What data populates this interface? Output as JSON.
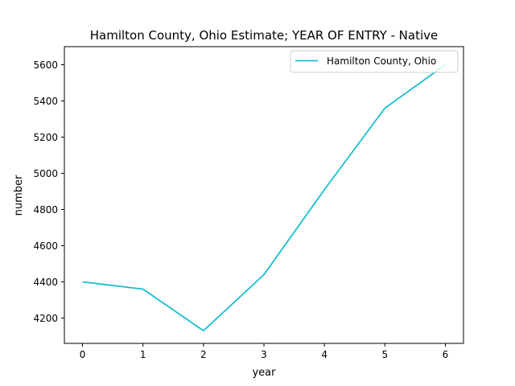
{
  "chart_data": {
    "type": "line",
    "title": "Hamilton County, Ohio Estimate; YEAR OF ENTRY - Native",
    "xlabel": "year",
    "ylabel": "number",
    "x": [
      0,
      1,
      2,
      3,
      4,
      5,
      6
    ],
    "series": [
      {
        "name": "Hamilton County, Ohio",
        "color": "#17becf",
        "values": [
          4400,
          4360,
          4130,
          4440,
          4910,
          5360,
          5600
        ]
      }
    ],
    "xlim": [
      -0.3,
      6.3
    ],
    "ylim": [
      4060,
      5700
    ],
    "xticks": [
      0,
      1,
      2,
      3,
      4,
      5,
      6
    ],
    "yticks": [
      4200,
      4400,
      4600,
      4800,
      5000,
      5200,
      5400,
      5600
    ],
    "grid": false,
    "legend_position": "top-right"
  }
}
